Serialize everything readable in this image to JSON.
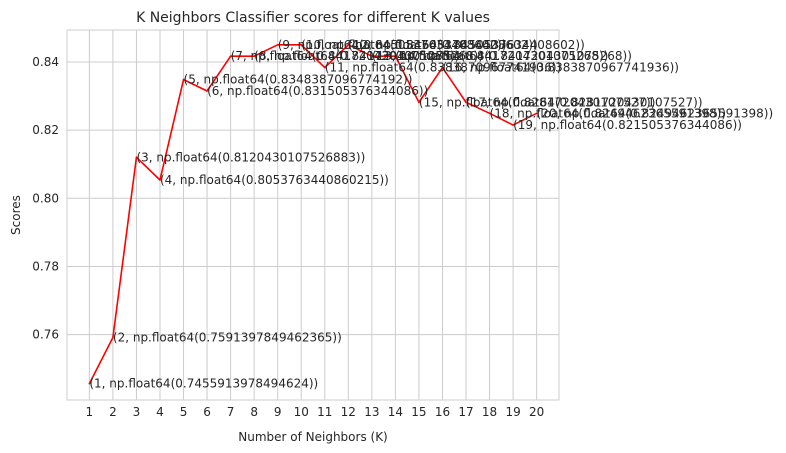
{
  "chart_data": {
    "type": "line",
    "title": "K Neighbors Classifier scores for different K values",
    "xlabel": "Number of Neighbors (K)",
    "ylabel": "Scores",
    "xlim": [
      0.05,
      20.95
    ],
    "ylim": [
      0.7408,
      0.8494
    ],
    "xticks": [
      1,
      2,
      3,
      4,
      5,
      6,
      7,
      8,
      9,
      10,
      11,
      12,
      13,
      14,
      15,
      16,
      17,
      18,
      19,
      20
    ],
    "yticks": [
      0.76,
      0.78,
      0.8,
      0.82,
      0.84
    ],
    "ytick_labels": [
      "0.76",
      "0.78",
      "0.80",
      "0.82",
      "0.84"
    ],
    "grid": true,
    "line_color": "#ff0000",
    "series": [
      {
        "x": [
          1,
          2,
          3,
          4,
          5,
          6,
          7,
          8,
          9,
          10,
          11,
          12,
          13,
          14,
          15,
          16,
          17,
          18,
          19,
          20
        ],
        "values": [
          0.7455913978494624,
          0.7591397849462365,
          0.8120430107526883,
          0.8053763440860215,
          0.8348387096774192,
          0.831505376344086,
          0.8417204301075268,
          0.8417204301075268,
          0.8450537634408603,
          0.8450537634408603,
          0.8383870967741937,
          0.8450537634408603,
          0.8417204301075268,
          0.8417204301075268,
          0.8281720430107526,
          0.8383870967741937,
          0.8281720430107526,
          0.8249462365591398,
          0.821505376344086,
          0.8249462365591398
        ]
      }
    ],
    "annotations": [
      "(1, np.float64(0.7455913978494624))",
      "(2, np.float64(0.7591397849462365))",
      "(3, np.float64(0.8120430107526883))",
      "(4, np.float64(0.8053763440860215))",
      "(5, np.float64(0.8348387096774192))",
      "(6, np.float64(0.831505376344086))",
      "(7, np.float64(0.8417204301075268))",
      "(8, np.float64(0.8417204301075268))",
      "(9, np.float64(0.8450537634408602))",
      "(10, np.float64(0.8450537634408602))",
      "(11, np.float64(0.8383870967741936))",
      "(12, np.float64(0.8450537634408602))",
      "(13, np.float64(0.8417204301075268))",
      "(14, np.float64(0.8417204301075268))",
      "(15, np.float64(0.8281720430107527))",
      "(16, np.float64(0.8383870967741936))",
      "(17, np.float64(0.8281720430107527))",
      "(18, np.float64(0.8249462365591398))",
      "(19, np.float64(0.821505376344086))",
      "(20, np.float64(0.8249462365591398))"
    ]
  }
}
